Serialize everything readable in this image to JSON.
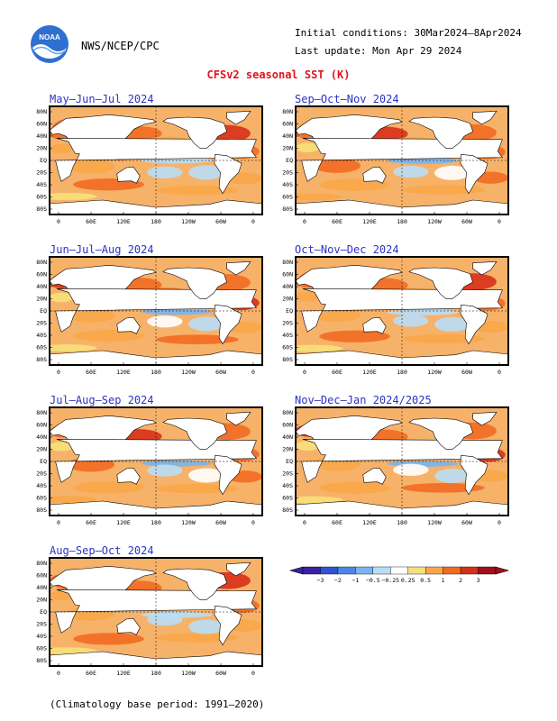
{
  "header": {
    "org": "NWS/NCEP/CPC",
    "logo_text": "NOAA",
    "init_conditions": "Initial conditions: 30Mar2024–8Apr2024",
    "last_update": "Last update: Mon Apr 29 2024",
    "title": "CFSv2 seasonal SST (K)"
  },
  "axes": {
    "lat_labels": [
      "80N",
      "60N",
      "40N",
      "20N",
      "EQ",
      "20S",
      "40S",
      "60S",
      "80S"
    ],
    "lon_labels": [
      "0",
      "60E",
      "120E",
      "180",
      "120W",
      "60W",
      "0"
    ]
  },
  "panels": [
    {
      "title": "May–Jun–Jul 2024"
    },
    {
      "title": "Sep–Oct–Nov 2024"
    },
    {
      "title": "Jun–Jul–Aug 2024"
    },
    {
      "title": "Oct–Nov–Dec 2024"
    },
    {
      "title": "Jul–Aug–Sep 2024"
    },
    {
      "title": "Nov–Dec–Jan 2024/2025"
    },
    {
      "title": "Aug–Sep–Oct 2024"
    }
  ],
  "colorbar": {
    "labels": [
      "−3",
      "−2",
      "−1",
      "−0.5",
      "−0.25",
      "0.25",
      "0.5",
      "1",
      "2",
      "3"
    ],
    "colors": [
      "#3b1fa8",
      "#2f52d6",
      "#4a86e8",
      "#79b4f0",
      "#b8ddf6",
      "#ffffff",
      "#f6e07a",
      "#f8a748",
      "#f26a22",
      "#d82f18",
      "#a2101a"
    ]
  },
  "footnote": "(Climatology base period: 1991–2020)"
}
